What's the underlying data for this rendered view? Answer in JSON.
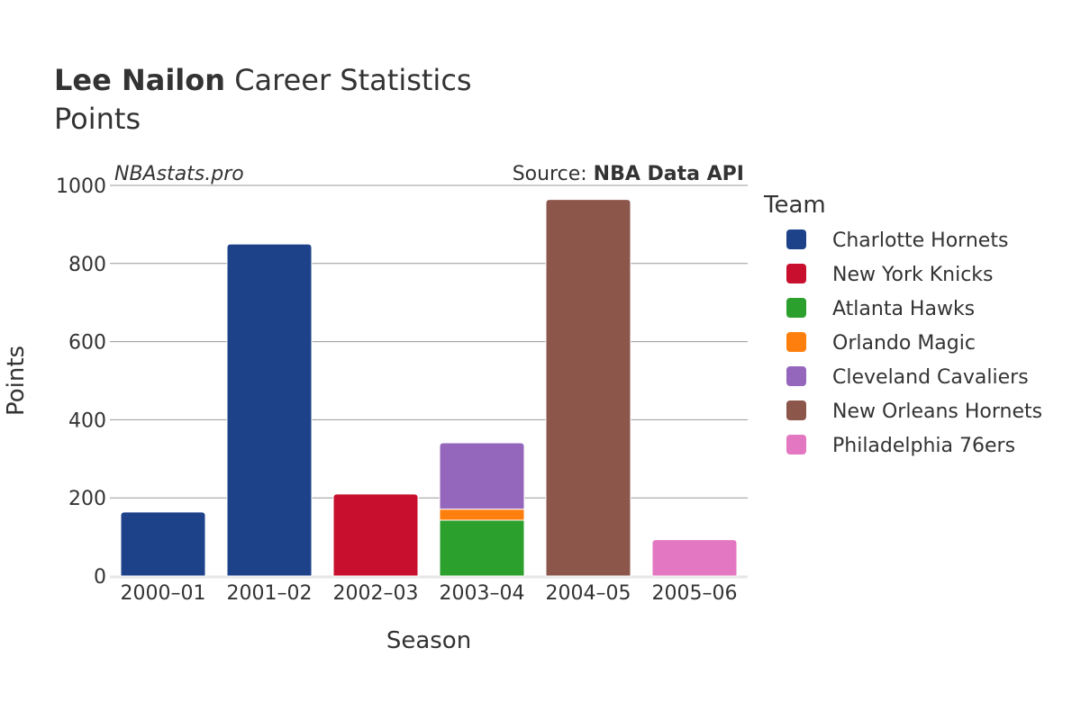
{
  "title": {
    "bold": "Lee Nailon",
    "rest": " Career Statistics"
  },
  "subtitle": "Points",
  "watermark": "NBAstats.pro",
  "source": {
    "prefix": "Source: ",
    "name": "NBA Data API"
  },
  "chart_data": {
    "type": "bar",
    "stacked": true,
    "xlabel": "Season",
    "ylabel": "Points",
    "ylim": [
      0,
      1000
    ],
    "yticks": [
      0,
      200,
      400,
      600,
      800,
      1000
    ],
    "grid": true,
    "legend_title": "Team",
    "legend_position": "right",
    "categories": [
      "2000–01",
      "2001–02",
      "2002–03",
      "2003–04",
      "2004–05",
      "2005–06"
    ],
    "series": [
      {
        "name": "Charlotte Hornets",
        "color": "#1d428a",
        "values": [
          164,
          850,
          0,
          0,
          0,
          0
        ]
      },
      {
        "name": "New York Knicks",
        "color": "#c8102e",
        "values": [
          0,
          0,
          210,
          0,
          0,
          0
        ]
      },
      {
        "name": "Atlanta Hawks",
        "color": "#2ca02c",
        "values": [
          0,
          0,
          0,
          143,
          0,
          0
        ]
      },
      {
        "name": "Orlando Magic",
        "color": "#ff7f0e",
        "values": [
          0,
          0,
          0,
          28,
          0,
          0
        ]
      },
      {
        "name": "Cleveland Cavaliers",
        "color": "#9467bd",
        "values": [
          0,
          0,
          0,
          170,
          0,
          0
        ]
      },
      {
        "name": "New Orleans Hornets",
        "color": "#8c564b",
        "values": [
          0,
          0,
          0,
          0,
          964,
          0
        ]
      },
      {
        "name": "Philadelphia 76ers",
        "color": "#e377c2",
        "values": [
          0,
          0,
          0,
          0,
          0,
          93
        ]
      }
    ]
  }
}
